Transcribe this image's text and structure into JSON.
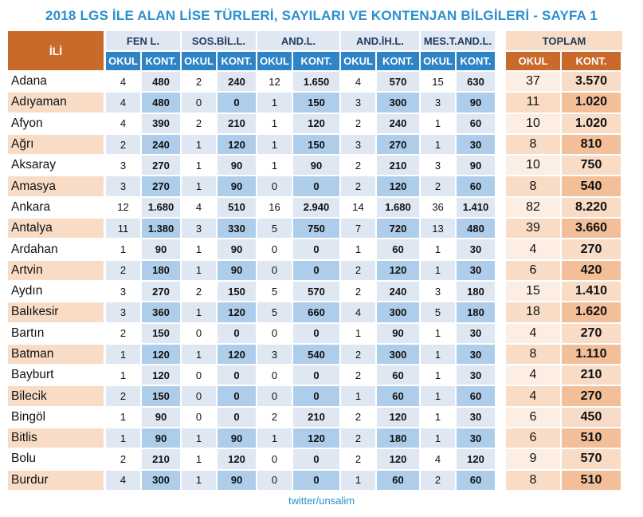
{
  "title": "2018 LGS İLE ALAN LİSE TÜRLERİ, SAYILARI VE KONTENJAN BİLGİLERİ - SAYFA 1",
  "header": {
    "ili": "İLİ",
    "groups": [
      "FEN L.",
      "SOS.BİL.L.",
      "AND.L.",
      "AND.İH.L.",
      "MES.T.AND.L."
    ],
    "total": "TOPLAM",
    "okul": "OKUL",
    "kont": "KONT."
  },
  "rows": [
    {
      "city": "Adana",
      "v": [
        "4",
        "480",
        "2",
        "240",
        "12",
        "1.650",
        "4",
        "570",
        "15",
        "630"
      ],
      "t": [
        "37",
        "3.570"
      ]
    },
    {
      "city": "Adıyaman",
      "v": [
        "4",
        "480",
        "0",
        "0",
        "1",
        "150",
        "3",
        "300",
        "3",
        "90"
      ],
      "t": [
        "11",
        "1.020"
      ]
    },
    {
      "city": "Afyon",
      "v": [
        "4",
        "390",
        "2",
        "210",
        "1",
        "120",
        "2",
        "240",
        "1",
        "60"
      ],
      "t": [
        "10",
        "1.020"
      ]
    },
    {
      "city": "Ağrı",
      "v": [
        "2",
        "240",
        "1",
        "120",
        "1",
        "150",
        "3",
        "270",
        "1",
        "30"
      ],
      "t": [
        "8",
        "810"
      ]
    },
    {
      "city": "Aksaray",
      "v": [
        "3",
        "270",
        "1",
        "90",
        "1",
        "90",
        "2",
        "210",
        "3",
        "90"
      ],
      "t": [
        "10",
        "750"
      ]
    },
    {
      "city": "Amasya",
      "v": [
        "3",
        "270",
        "1",
        "90",
        "0",
        "0",
        "2",
        "120",
        "2",
        "60"
      ],
      "t": [
        "8",
        "540"
      ]
    },
    {
      "city": "Ankara",
      "v": [
        "12",
        "1.680",
        "4",
        "510",
        "16",
        "2.940",
        "14",
        "1.680",
        "36",
        "1.410"
      ],
      "t": [
        "82",
        "8.220"
      ]
    },
    {
      "city": "Antalya",
      "v": [
        "11",
        "1.380",
        "3",
        "330",
        "5",
        "750",
        "7",
        "720",
        "13",
        "480"
      ],
      "t": [
        "39",
        "3.660"
      ]
    },
    {
      "city": "Ardahan",
      "v": [
        "1",
        "90",
        "1",
        "90",
        "0",
        "0",
        "1",
        "60",
        "1",
        "30"
      ],
      "t": [
        "4",
        "270"
      ]
    },
    {
      "city": "Artvin",
      "v": [
        "2",
        "180",
        "1",
        "90",
        "0",
        "0",
        "2",
        "120",
        "1",
        "30"
      ],
      "t": [
        "6",
        "420"
      ]
    },
    {
      "city": "Aydın",
      "v": [
        "3",
        "270",
        "2",
        "150",
        "5",
        "570",
        "2",
        "240",
        "3",
        "180"
      ],
      "t": [
        "15",
        "1.410"
      ]
    },
    {
      "city": "Balıkesir",
      "v": [
        "3",
        "360",
        "1",
        "120",
        "5",
        "660",
        "4",
        "300",
        "5",
        "180"
      ],
      "t": [
        "18",
        "1.620"
      ]
    },
    {
      "city": "Bartın",
      "v": [
        "2",
        "150",
        "0",
        "0",
        "0",
        "0",
        "1",
        "90",
        "1",
        "30"
      ],
      "t": [
        "4",
        "270"
      ]
    },
    {
      "city": "Batman",
      "v": [
        "1",
        "120",
        "1",
        "120",
        "3",
        "540",
        "2",
        "300",
        "1",
        "30"
      ],
      "t": [
        "8",
        "1.110"
      ]
    },
    {
      "city": "Bayburt",
      "v": [
        "1",
        "120",
        "0",
        "0",
        "0",
        "0",
        "2",
        "60",
        "1",
        "30"
      ],
      "t": [
        "4",
        "210"
      ]
    },
    {
      "city": "Bilecik",
      "v": [
        "2",
        "150",
        "0",
        "0",
        "0",
        "0",
        "1",
        "60",
        "1",
        "60"
      ],
      "t": [
        "4",
        "270"
      ]
    },
    {
      "city": "Bingöl",
      "v": [
        "1",
        "90",
        "0",
        "0",
        "2",
        "210",
        "2",
        "120",
        "1",
        "30"
      ],
      "t": [
        "6",
        "450"
      ]
    },
    {
      "city": "Bitlis",
      "v": [
        "1",
        "90",
        "1",
        "90",
        "1",
        "120",
        "2",
        "180",
        "1",
        "30"
      ],
      "t": [
        "6",
        "510"
      ]
    },
    {
      "city": "Bolu",
      "v": [
        "2",
        "210",
        "1",
        "120",
        "0",
        "0",
        "2",
        "120",
        "4",
        "120"
      ],
      "t": [
        "9",
        "570"
      ]
    },
    {
      "city": "Burdur",
      "v": [
        "4",
        "300",
        "1",
        "90",
        "0",
        "0",
        "1",
        "60",
        "2",
        "60"
      ],
      "t": [
        "8",
        "510"
      ]
    }
  ],
  "footer": "twitter/unsalim"
}
